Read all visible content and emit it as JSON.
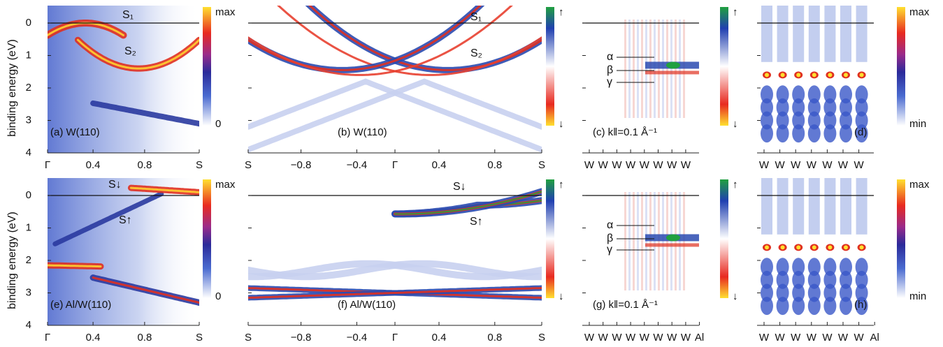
{
  "y_axis_label": "binding energy (eV)",
  "energy_ticks": [
    "0",
    "1",
    "2",
    "3",
    "4"
  ],
  "rows": [
    {
      "panels": [
        {
          "label": "(a) W(110)",
          "x_ticks": [
            "Γ",
            "0.4",
            "0.8",
            "S"
          ],
          "annotations": [
            "S₁",
            "S₂"
          ],
          "colorbar": [
            "max",
            "0"
          ]
        },
        {
          "label": "(b) W(110)",
          "x_ticks": [
            "S",
            "−0.8",
            "−0.4",
            "Γ",
            "0.4",
            "0.8",
            "S"
          ],
          "annotations": [
            "S₁",
            "S₂"
          ],
          "colorbar": [
            "↑",
            "↓"
          ]
        },
        {
          "label": "(c) k‖=0.1 Å⁻¹",
          "x_ticks": [
            "W",
            "W",
            "W",
            "W",
            "W",
            "W",
            "W",
            "W"
          ],
          "annotations": [
            "α",
            "β",
            "γ"
          ],
          "colorbar": [
            "↑",
            "↓"
          ]
        },
        {
          "label": "(d)",
          "x_ticks": [
            "W",
            "W",
            "W",
            "W",
            "W",
            "W",
            "W"
          ],
          "annotations": [],
          "colorbar": [
            "max",
            "min"
          ]
        }
      ]
    },
    {
      "panels": [
        {
          "label": "(e) Al/W(110)",
          "x_ticks": [
            "Γ",
            "0.4",
            "0.8",
            "S"
          ],
          "annotations": [
            "S↓",
            "S↑"
          ],
          "colorbar": [
            "max",
            "0"
          ]
        },
        {
          "label": "(f) Al/W(110)",
          "x_ticks": [
            "S",
            "−0.8",
            "−0.4",
            "Γ",
            "0.4",
            "0.8",
            "S"
          ],
          "annotations": [
            "S↓",
            "S↑"
          ],
          "colorbar": [
            "↑",
            "↓"
          ]
        },
        {
          "label": "(g) k‖=0.1 Å⁻¹",
          "x_ticks": [
            "W",
            "W",
            "W",
            "W",
            "W",
            "W",
            "W",
            "W",
            "Al"
          ],
          "annotations": [
            "α",
            "β",
            "γ"
          ],
          "colorbar": [
            "↑",
            "↓"
          ]
        },
        {
          "label": "(h)",
          "x_ticks": [
            "W",
            "W",
            "W",
            "W",
            "W",
            "W",
            "W",
            "Al"
          ],
          "annotations": [],
          "colorbar": [
            "max",
            "min"
          ]
        }
      ]
    }
  ]
}
